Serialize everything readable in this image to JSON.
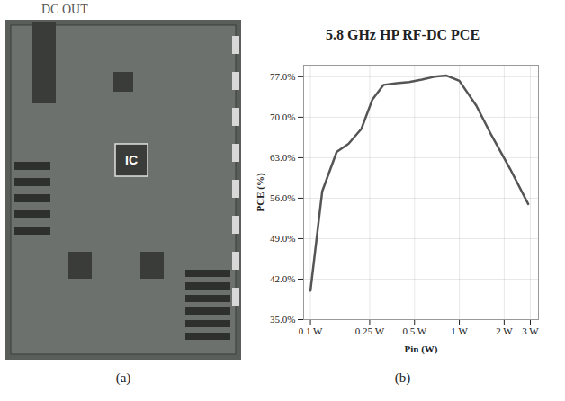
{
  "figure": {
    "panels": [
      {
        "caption": "(a)",
        "type": "photo",
        "labels": [
          "DC OUT",
          "IC"
        ]
      },
      {
        "caption": "(b)"
      }
    ]
  },
  "chart_data": {
    "type": "line",
    "title": "5.8 GHz HP RF-DC PCE",
    "x_label": "Pin (W)",
    "y_label": "PCE (%)",
    "log": "x",
    "x": [
      0.1,
      0.12,
      0.15,
      0.18,
      0.22,
      0.26,
      0.31,
      0.38,
      0.46,
      0.56,
      0.68,
      0.82,
      1.0,
      1.3,
      1.65,
      2.2,
      2.9
    ],
    "values": [
      40,
      57.2,
      64,
      65.4,
      68,
      73,
      75.6,
      75.9,
      76.1,
      76.5,
      77,
      77.2,
      76.3,
      72,
      66.8,
      61,
      55
    ],
    "color": "#555555",
    "xlim": [
      0.09,
      3.4
    ],
    "ylim": [
      35,
      79
    ],
    "xticks": [
      {
        "value": 0.1,
        "label": "0.1 W"
      },
      {
        "value": 0.25,
        "label": "0.25 W"
      },
      {
        "value": 0.5,
        "label": "0.5 W"
      },
      {
        "value": 1,
        "label": "1 W"
      },
      {
        "value": 2,
        "label": "2 W"
      },
      {
        "value": 3,
        "label": "3 W"
      }
    ],
    "yticks": [
      {
        "value": 35,
        "label": "35.0%"
      },
      {
        "value": 42,
        "label": "42.0%"
      },
      {
        "value": 49,
        "label": "49.0%"
      },
      {
        "value": 56,
        "label": "56.0%"
      },
      {
        "value": 63,
        "label": "63.0%"
      },
      {
        "value": 70,
        "label": "70.0%"
      },
      {
        "value": 77,
        "label": "77.0%"
      }
    ],
    "grid": true
  }
}
